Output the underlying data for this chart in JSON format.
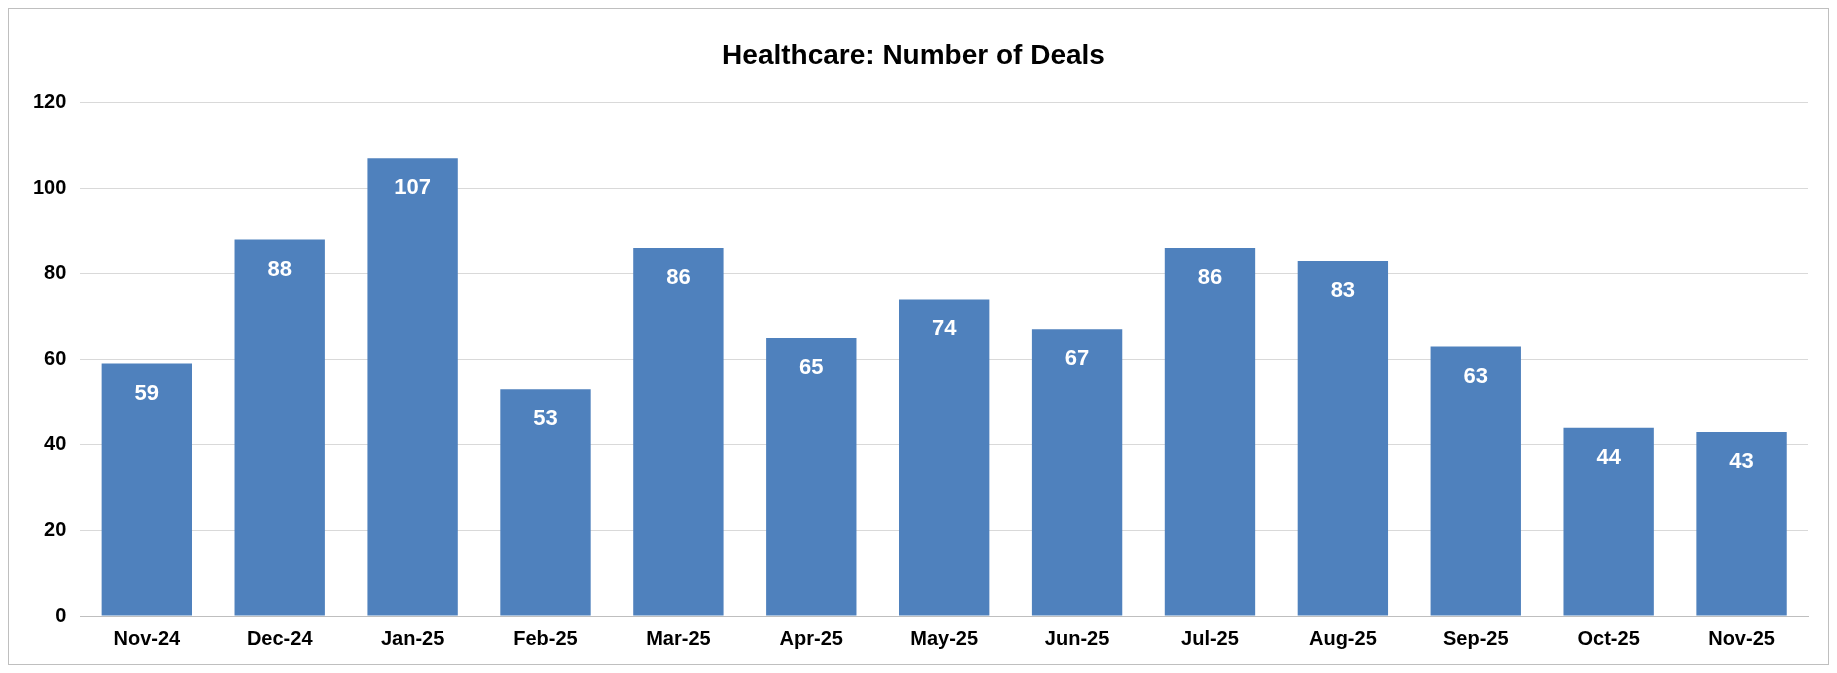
{
  "chart_data": {
    "type": "bar",
    "title": "Healthcare: Number of Deals",
    "categories": [
      "Nov-24",
      "Dec-24",
      "Jan-25",
      "Feb-25",
      "Mar-25",
      "Apr-25",
      "May-25",
      "Jun-25",
      "Jul-25",
      "Aug-25",
      "Sep-25",
      "Oct-25",
      "Nov-25"
    ],
    "values": [
      59,
      88,
      107,
      53,
      86,
      65,
      74,
      67,
      86,
      83,
      63,
      44,
      43
    ],
    "color": "#4f81bd",
    "ylim": [
      0,
      120
    ],
    "yticks": [
      0,
      20,
      40,
      60,
      80,
      100,
      120
    ],
    "grid": "y",
    "legend": false,
    "data_labels": true
  }
}
